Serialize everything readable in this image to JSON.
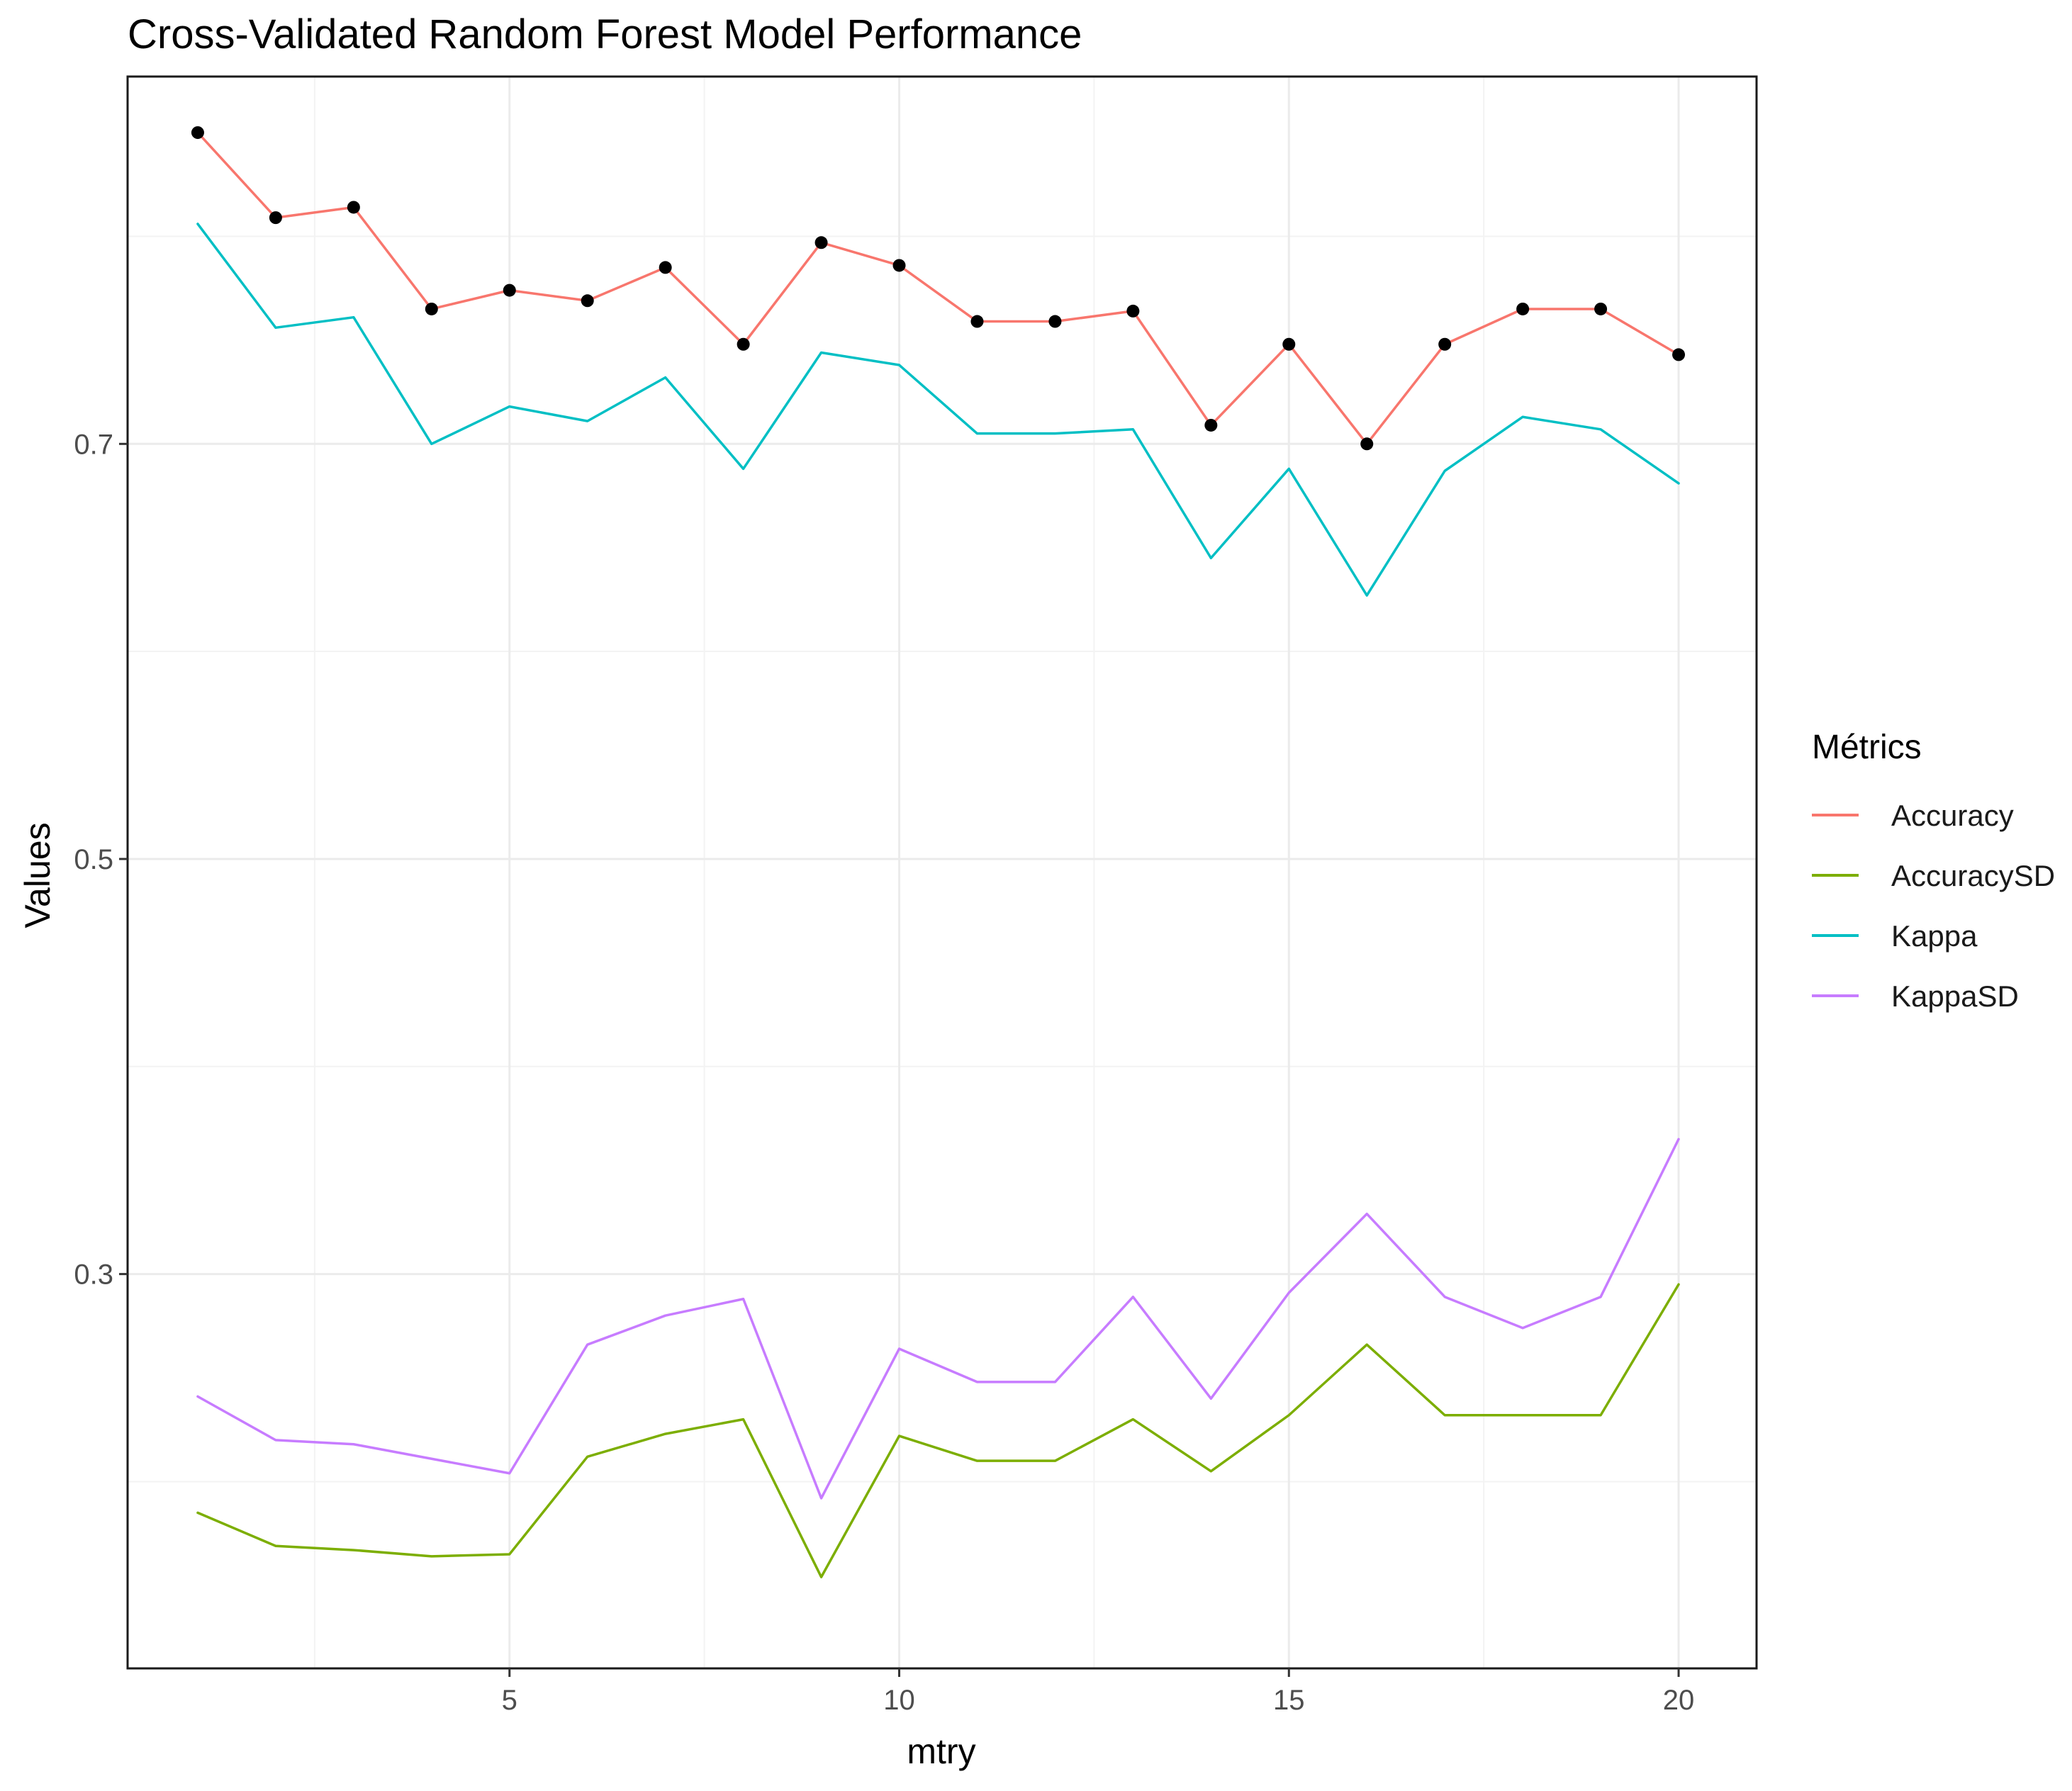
{
  "chart_data": {
    "type": "line",
    "title": "Cross-Validated Random Forest Model Performance",
    "xlabel": "mtry",
    "ylabel": "Values",
    "x": [
      1,
      2,
      3,
      4,
      5,
      6,
      7,
      8,
      9,
      10,
      11,
      12,
      13,
      14,
      15,
      16,
      17,
      18,
      19,
      20
    ],
    "xlim": [
      0.1,
      21.0
    ],
    "ylim": [
      0.11,
      0.877
    ],
    "x_ticks": [
      5,
      10,
      15,
      20
    ],
    "x_tick_labels": [
      "5",
      "10",
      "15",
      "20"
    ],
    "y_ticks": [
      0.3,
      0.5,
      0.7
    ],
    "y_tick_labels": [
      "0.3",
      "0.5",
      "0.7"
    ],
    "grid": true,
    "legend_title": "Métrics",
    "legend_position": "right",
    "series": [
      {
        "name": "Accuracy",
        "color": "#F8766D",
        "points": true,
        "values": [
          0.85,
          0.809,
          0.814,
          0.765,
          0.774,
          0.769,
          0.785,
          0.748,
          0.797,
          0.786,
          0.759,
          0.759,
          0.764,
          0.709,
          0.748,
          0.7,
          0.748,
          0.765,
          0.765,
          0.743
        ]
      },
      {
        "name": "AccuracySD",
        "color": "#7CAE00",
        "points": false,
        "values": [
          0.185,
          0.169,
          0.167,
          0.164,
          0.165,
          0.212,
          0.223,
          0.23,
          0.154,
          0.222,
          0.21,
          0.21,
          0.23,
          0.205,
          0.232,
          0.266,
          0.232,
          0.232,
          0.232,
          0.295
        ]
      },
      {
        "name": "Kappa",
        "color": "#00BFC4",
        "points": false,
        "values": [
          0.806,
          0.756,
          0.761,
          0.7,
          0.718,
          0.711,
          0.732,
          0.688,
          0.744,
          0.738,
          0.705,
          0.705,
          0.707,
          0.645,
          0.688,
          0.627,
          0.687,
          0.713,
          0.707,
          0.681
        ]
      },
      {
        "name": "KappaSD",
        "color": "#C77CFF",
        "points": false,
        "values": [
          0.241,
          0.22,
          0.218,
          0.211,
          0.204,
          0.266,
          0.28,
          0.288,
          0.192,
          0.264,
          0.248,
          0.248,
          0.289,
          0.24,
          0.291,
          0.329,
          0.289,
          0.274,
          0.289,
          0.365
        ]
      }
    ]
  }
}
